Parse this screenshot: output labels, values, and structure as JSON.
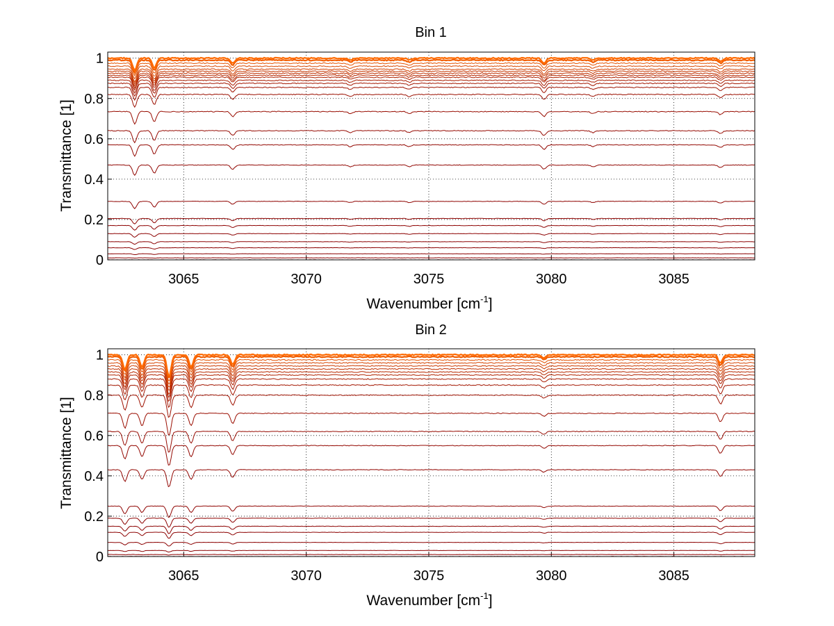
{
  "chart_data": [
    {
      "type": "line",
      "title": "Bin 1",
      "xlabel": "Wavenumber [cm",
      "xlabel_sup": "-1",
      "xlabel_end": "]",
      "ylabel": "Transmittance [1]",
      "xlim": [
        3061.9,
        3088.3
      ],
      "ylim": [
        0,
        1.03
      ],
      "xticks": [
        3065,
        3070,
        3075,
        3080,
        3085
      ],
      "yticks": [
        0,
        0.2,
        0.4,
        0.6,
        0.8,
        1
      ],
      "ytick_labels": [
        "0",
        "0.2",
        "0.4",
        "0.6",
        "0.8",
        "1"
      ],
      "grid": "dotted",
      "legend": "none",
      "color_low": "#8b0000",
      "color_high": "#ff6a00",
      "series_levels": [
        0.0,
        0.01,
        0.03,
        0.06,
        0.09,
        0.13,
        0.17,
        0.205,
        0.29,
        0.47,
        0.57,
        0.64,
        0.735,
        0.82,
        0.855,
        0.875,
        0.89,
        0.905,
        0.915,
        0.925,
        0.935,
        0.945,
        0.96,
        0.975,
        0.99,
        1.0
      ],
      "dip_centers": [
        3063.0,
        3063.8,
        3067.0,
        3071.8,
        3074.2,
        3079.7,
        3081.7,
        3086.9
      ],
      "dip_depth_fraction": [
        0.05,
        0.04,
        0.02,
        0.008,
        0.008,
        0.02,
        0.008,
        0.012
      ]
    },
    {
      "type": "line",
      "title": "Bin 2",
      "xlabel": "Wavenumber [cm",
      "xlabel_sup": "-1",
      "xlabel_end": "]",
      "ylabel": "Transmittance [1]",
      "xlim": [
        3061.9,
        3088.3
      ],
      "ylim": [
        0,
        1.03
      ],
      "xticks": [
        3065,
        3070,
        3075,
        3080,
        3085
      ],
      "yticks": [
        0,
        0.2,
        0.4,
        0.6,
        0.8,
        1
      ],
      "ytick_labels": [
        "0",
        "0.2",
        "0.4",
        "0.6",
        "0.8",
        "1"
      ],
      "grid": "dotted",
      "legend": "none",
      "color_low": "#8b0000",
      "color_high": "#ff6a00",
      "series_levels": [
        0.0,
        0.01,
        0.03,
        0.07,
        0.12,
        0.15,
        0.19,
        0.25,
        0.43,
        0.55,
        0.62,
        0.71,
        0.8,
        0.85,
        0.88,
        0.9,
        0.915,
        0.93,
        0.945,
        0.96,
        0.975,
        0.99,
        1.0
      ],
      "dip_centers": [
        3062.6,
        3063.3,
        3064.4,
        3065.3,
        3067.0,
        3079.7,
        3086.9
      ],
      "dip_depth_fraction": [
        0.06,
        0.05,
        0.09,
        0.05,
        0.04,
        0.012,
        0.035
      ]
    }
  ]
}
